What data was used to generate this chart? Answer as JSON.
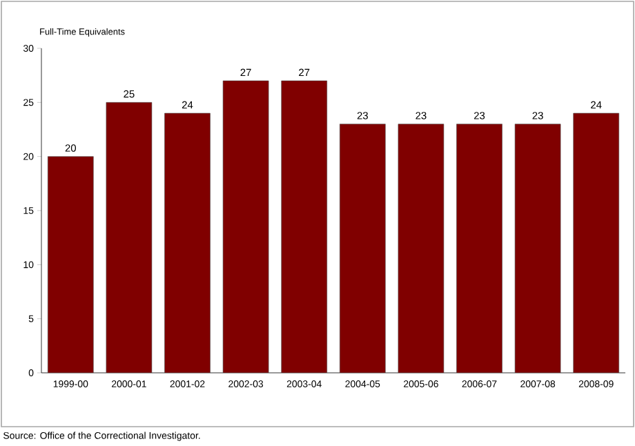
{
  "chart_data": {
    "type": "bar",
    "ylabel": "Full-Time Equivalents",
    "categories": [
      "1999-00",
      "2000-01",
      "2001-02",
      "2002-03",
      "2003-04",
      "2004-05",
      "2005-06",
      "2006-07",
      "2007-08",
      "2008-09"
    ],
    "values": [
      20,
      25,
      24,
      27,
      27,
      23,
      23,
      23,
      23,
      24
    ],
    "color": "#800000",
    "ylim": [
      0,
      30
    ],
    "yticks": [
      0,
      5,
      10,
      15,
      20,
      25,
      30
    ],
    "data_labels": true,
    "grid": false,
    "annotations": [
      "Source:  Office of the Correctional Investigator."
    ]
  }
}
